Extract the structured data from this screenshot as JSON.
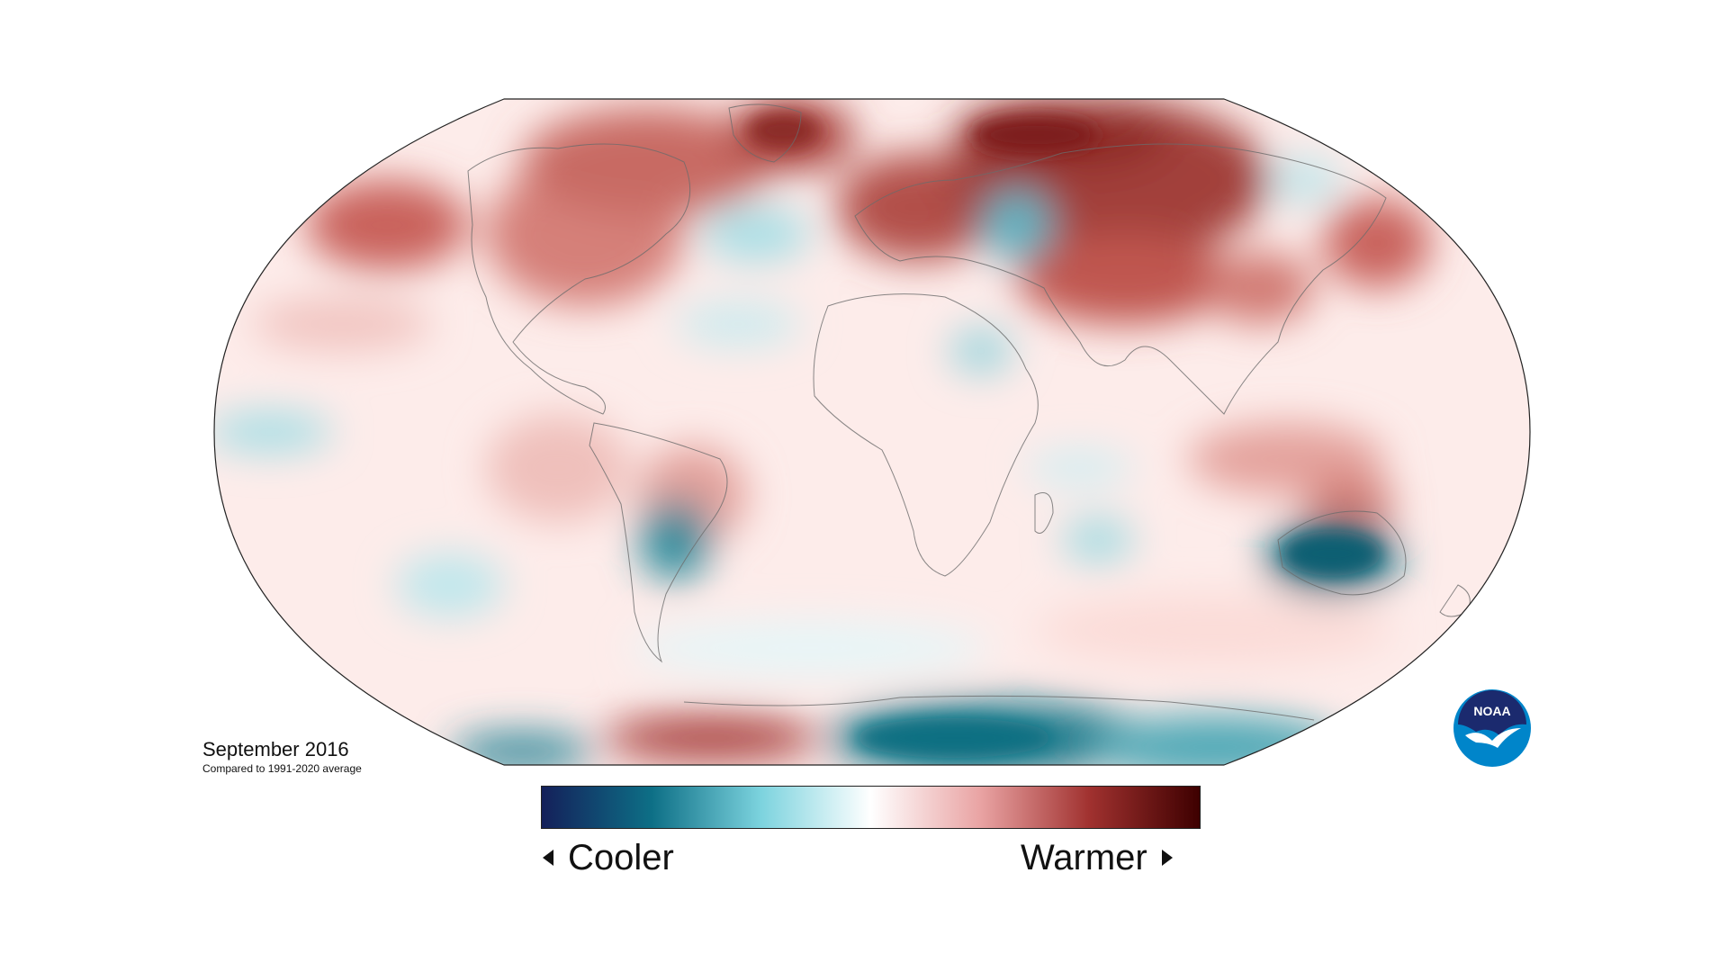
{
  "map": {
    "title": "September 2016",
    "subtitle": "Compared to 1991-2020 average",
    "projection": "robinson"
  },
  "legend": {
    "cool_label": "Cooler",
    "warm_label": "Warmer",
    "colors": [
      "#14205a",
      "#0d6f86",
      "#7cd3de",
      "#ffffff",
      "#e9a3a3",
      "#a0312f",
      "#3e0000"
    ]
  },
  "logo": {
    "text": "NOAA",
    "icon": "noaa-logo-icon",
    "colors": {
      "outer": "#0085ca",
      "inner": "#1b2a6e",
      "bird": "#ffffff"
    }
  }
}
